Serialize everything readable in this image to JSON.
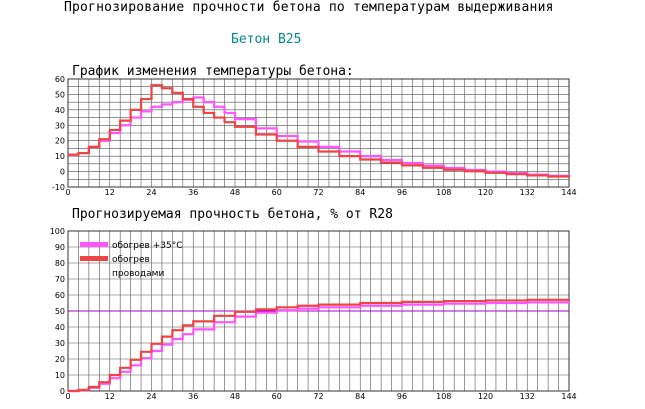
{
  "page": {
    "title": "Прогнозирование прочности бетона по температурам выдерживания",
    "subtitle": "Бетон B25"
  },
  "colors": {
    "magenta": "#ff55ff",
    "red": "#ee4444",
    "purple": "#aa00cc",
    "grid": "#555555"
  },
  "chart_data": [
    {
      "type": "line",
      "title": "График изменения температуры бетона:",
      "x_ticks": [
        "0",
        "12",
        "24",
        "36",
        "48",
        "60",
        "72",
        "84",
        "96",
        "108",
        "120",
        "132",
        "144"
      ],
      "y_ticks": [
        "60",
        "50",
        "40",
        "30",
        "20",
        "10",
        "0",
        "-10"
      ],
      "xlim": [
        0,
        144
      ],
      "ylim": [
        -10,
        60
      ],
      "grid": true,
      "series": [
        {
          "color": "#ff55ff",
          "points": [
            [
              0,
              11
            ],
            [
              3,
              12
            ],
            [
              6,
              16
            ],
            [
              9,
              20
            ],
            [
              12,
              25
            ],
            [
              15,
              30
            ],
            [
              18,
              35
            ],
            [
              21,
              39
            ],
            [
              24,
              42
            ],
            [
              27,
              43.5
            ],
            [
              30,
              45
            ],
            [
              33,
              46.5
            ],
            [
              36,
              48
            ],
            [
              39,
              45
            ],
            [
              42,
              42
            ],
            [
              45,
              38
            ],
            [
              48,
              34
            ],
            [
              54,
              28
            ],
            [
              60,
              23
            ],
            [
              66,
              19.5
            ],
            [
              72,
              16
            ],
            [
              78,
              13
            ],
            [
              84,
              10
            ],
            [
              90,
              7.5
            ],
            [
              96,
              5.5
            ],
            [
              102,
              3.8
            ],
            [
              108,
              2.3
            ],
            [
              114,
              1
            ],
            [
              120,
              0
            ],
            [
              126,
              -1
            ],
            [
              132,
              -2
            ],
            [
              138,
              -2.8
            ],
            [
              144,
              -3.5
            ]
          ]
        },
        {
          "color": "#ee4444",
          "points": [
            [
              0,
              11
            ],
            [
              3,
              12
            ],
            [
              6,
              16
            ],
            [
              9,
              21
            ],
            [
              12,
              27
            ],
            [
              15,
              33
            ],
            [
              18,
              40
            ],
            [
              21,
              47
            ],
            [
              24,
              56
            ],
            [
              27,
              54
            ],
            [
              30,
              51
            ],
            [
              33,
              47
            ],
            [
              36,
              42
            ],
            [
              39,
              38
            ],
            [
              42,
              35
            ],
            [
              45,
              32
            ],
            [
              48,
              29
            ],
            [
              54,
              24
            ],
            [
              60,
              20
            ],
            [
              66,
              16
            ],
            [
              72,
              13
            ],
            [
              78,
              10
            ],
            [
              84,
              7.8
            ],
            [
              90,
              5.8
            ],
            [
              96,
              4
            ],
            [
              102,
              2.5
            ],
            [
              108,
              1.2
            ],
            [
              114,
              0.2
            ],
            [
              120,
              -0.8
            ],
            [
              126,
              -1.7
            ],
            [
              132,
              -2.5
            ],
            [
              138,
              -3.2
            ],
            [
              144,
              -3.8
            ]
          ]
        }
      ]
    },
    {
      "type": "line",
      "title": "Прогнозируемая прочность бетона, % от R28",
      "x_ticks": [
        "0",
        "12",
        "24",
        "36",
        "48",
        "60",
        "72",
        "84",
        "96",
        "108",
        "120",
        "132",
        "144"
      ],
      "y_ticks": [
        "100",
        "90",
        "80",
        "70",
        "60",
        "50",
        "40",
        "30",
        "20",
        "10",
        "0"
      ],
      "xlim": [
        0,
        144
      ],
      "ylim": [
        0,
        100
      ],
      "grid": true,
      "reference_line": 50,
      "legend": [
        {
          "label": "обогрев +35°С",
          "color": "#ff55ff"
        },
        {
          "label": "обогрев",
          "color": "#ee4444"
        },
        {
          "label": "проводами",
          "color": ""
        }
      ],
      "series": [
        {
          "color": "#ff55ff",
          "points": [
            [
              0,
              0
            ],
            [
              3,
              0.5
            ],
            [
              6,
              2
            ],
            [
              9,
              4.5
            ],
            [
              12,
              8
            ],
            [
              15,
              12
            ],
            [
              18,
              16
            ],
            [
              21,
              20.5
            ],
            [
              24,
              25
            ],
            [
              27,
              29
            ],
            [
              30,
              32.5
            ],
            [
              33,
              35.5
            ],
            [
              36,
              38.5
            ],
            [
              42,
              43
            ],
            [
              48,
              46.5
            ],
            [
              54,
              49
            ],
            [
              60,
              50.5
            ],
            [
              66,
              51.5
            ],
            [
              72,
              52.3
            ],
            [
              84,
              53.3
            ],
            [
              96,
              54
            ],
            [
              108,
              54.6
            ],
            [
              120,
              55
            ],
            [
              132,
              55.4
            ],
            [
              144,
              55.7
            ]
          ]
        },
        {
          "color": "#ee4444",
          "points": [
            [
              0,
              0
            ],
            [
              3,
              0.7
            ],
            [
              6,
              2.5
            ],
            [
              9,
              5.5
            ],
            [
              12,
              10
            ],
            [
              15,
              14.5
            ],
            [
              18,
              19.5
            ],
            [
              21,
              24.5
            ],
            [
              24,
              29.5
            ],
            [
              27,
              34
            ],
            [
              30,
              38
            ],
            [
              33,
              41
            ],
            [
              36,
              43.5
            ],
            [
              42,
              47
            ],
            [
              48,
              49.5
            ],
            [
              54,
              51
            ],
            [
              60,
              52.3
            ],
            [
              66,
              53.3
            ],
            [
              72,
              54
            ],
            [
              84,
              55
            ],
            [
              96,
              55.7
            ],
            [
              108,
              56.2
            ],
            [
              120,
              56.6
            ],
            [
              132,
              57
            ],
            [
              144,
              57.3
            ]
          ]
        }
      ]
    }
  ]
}
